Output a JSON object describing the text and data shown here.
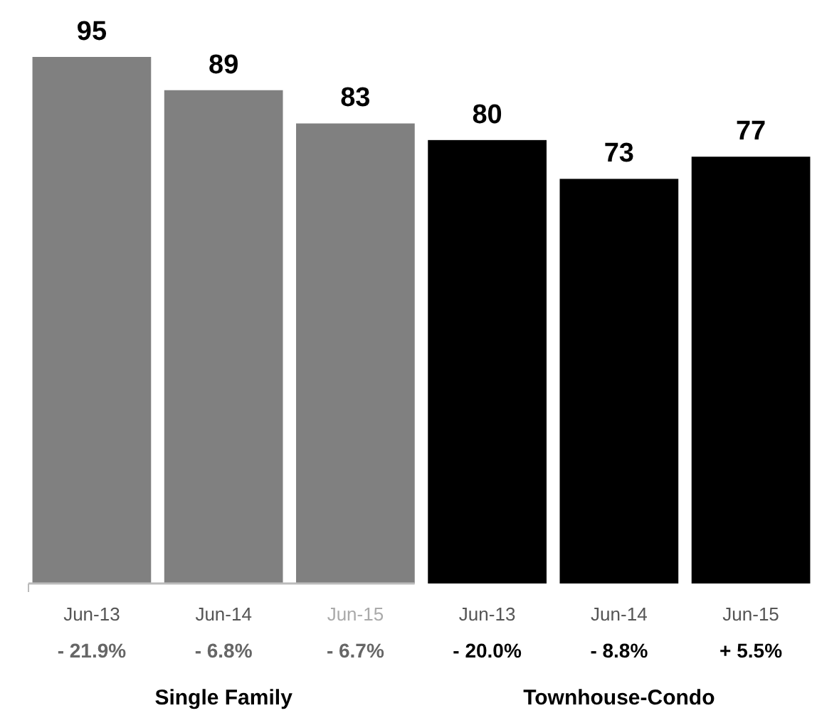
{
  "chart_data": {
    "type": "bar",
    "categories": [
      "Jun-13",
      "Jun-14",
      "Jun-15",
      "Jun-13",
      "Jun-14",
      "Jun-15"
    ],
    "values": [
      95,
      89,
      83,
      80,
      73,
      77
    ],
    "colors": [
      "#808080",
      "#808080",
      "#808080",
      "#000000",
      "#000000",
      "#000000"
    ],
    "annotations": [
      "- 21.9%",
      "- 6.8%",
      "- 6.7%",
      "- 20.0%",
      "- 8.8%",
      "+ 5.5%",
      "Single Family",
      "Townhouse-Condo"
    ],
    "data_labels": true
  }
}
